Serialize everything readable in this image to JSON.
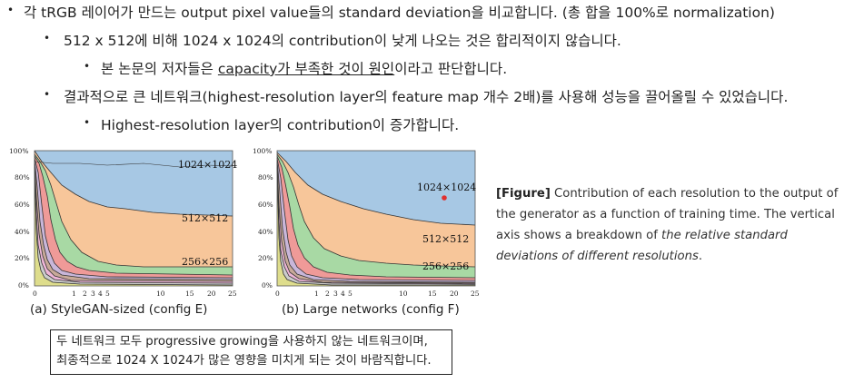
{
  "bullets": [
    {
      "level": 1,
      "parts": [
        "각 tRGB 레이어가 만드는 output pixel value들의 standard deviation을 비교합니다. (총 합을 100%로 normalization)"
      ]
    },
    {
      "level": 2,
      "parts": [
        "512 x 512에 비해 1024 x 1024의 contribution이 낮게 나오는 것은 합리적이지 않습니다."
      ]
    },
    {
      "level": 3,
      "pre": "본 논문의 저자들은 ",
      "underlined": "capacity가 부족한 것이 원인",
      "post": "이라고 판단합니다."
    },
    {
      "level": 2,
      "parts": [
        "결과적으로 큰 네트워크(highest-resolution layer의 feature map 개수 2배)를 사용해 성능을 끌어올릴 수 있었습니다."
      ]
    },
    {
      "level": 3,
      "parts": [
        "Highest-resolution layer의 contribution이 증가합니다."
      ]
    }
  ],
  "charts": {
    "y_ticks": [
      "100%",
      "80%",
      "60%",
      "40%",
      "20%",
      "0%"
    ],
    "x_ticks": [
      "0",
      "1",
      "2",
      "3",
      "4",
      "5",
      "10",
      "15",
      "20",
      "25"
    ],
    "left": {
      "caption": "(a) StyleGAN-sized (config E)",
      "labels": {
        "r1024": "1024×1024",
        "r512": "512×512",
        "r256": "256×256"
      }
    },
    "right": {
      "caption": "(b) Large networks (config F)",
      "labels": {
        "r1024": "1024×1024",
        "r512": "512×512",
        "r256": "256×256"
      }
    },
    "colors": {
      "r1024": "#a7c8e4",
      "r512": "#f7c69a",
      "r256": "#a8d9a4",
      "r128": "#ef9a98",
      "r64": "#c9b6d9",
      "r32": "#c8a999",
      "r16": "#efb6d8",
      "r8": "#cccccc",
      "r4": "#dedd8c",
      "marker": "#e03030"
    }
  },
  "figure_caption": {
    "prefix": "[Figure]",
    "text": " Contribution of each resolution to the output of the generator as a function of training time. The vertical axis shows a breakdown of ",
    "italic": "the relative standard deviations of different resolutions",
    "end": "."
  },
  "note_box": {
    "line1": "두 네트워크 모두 progressive growing을 사용하지 않는 네트워크이며,",
    "line2": "최종적으로 1024 X 1024가 많은 영향을 미치게 되는 것이 바람직합니다."
  }
}
